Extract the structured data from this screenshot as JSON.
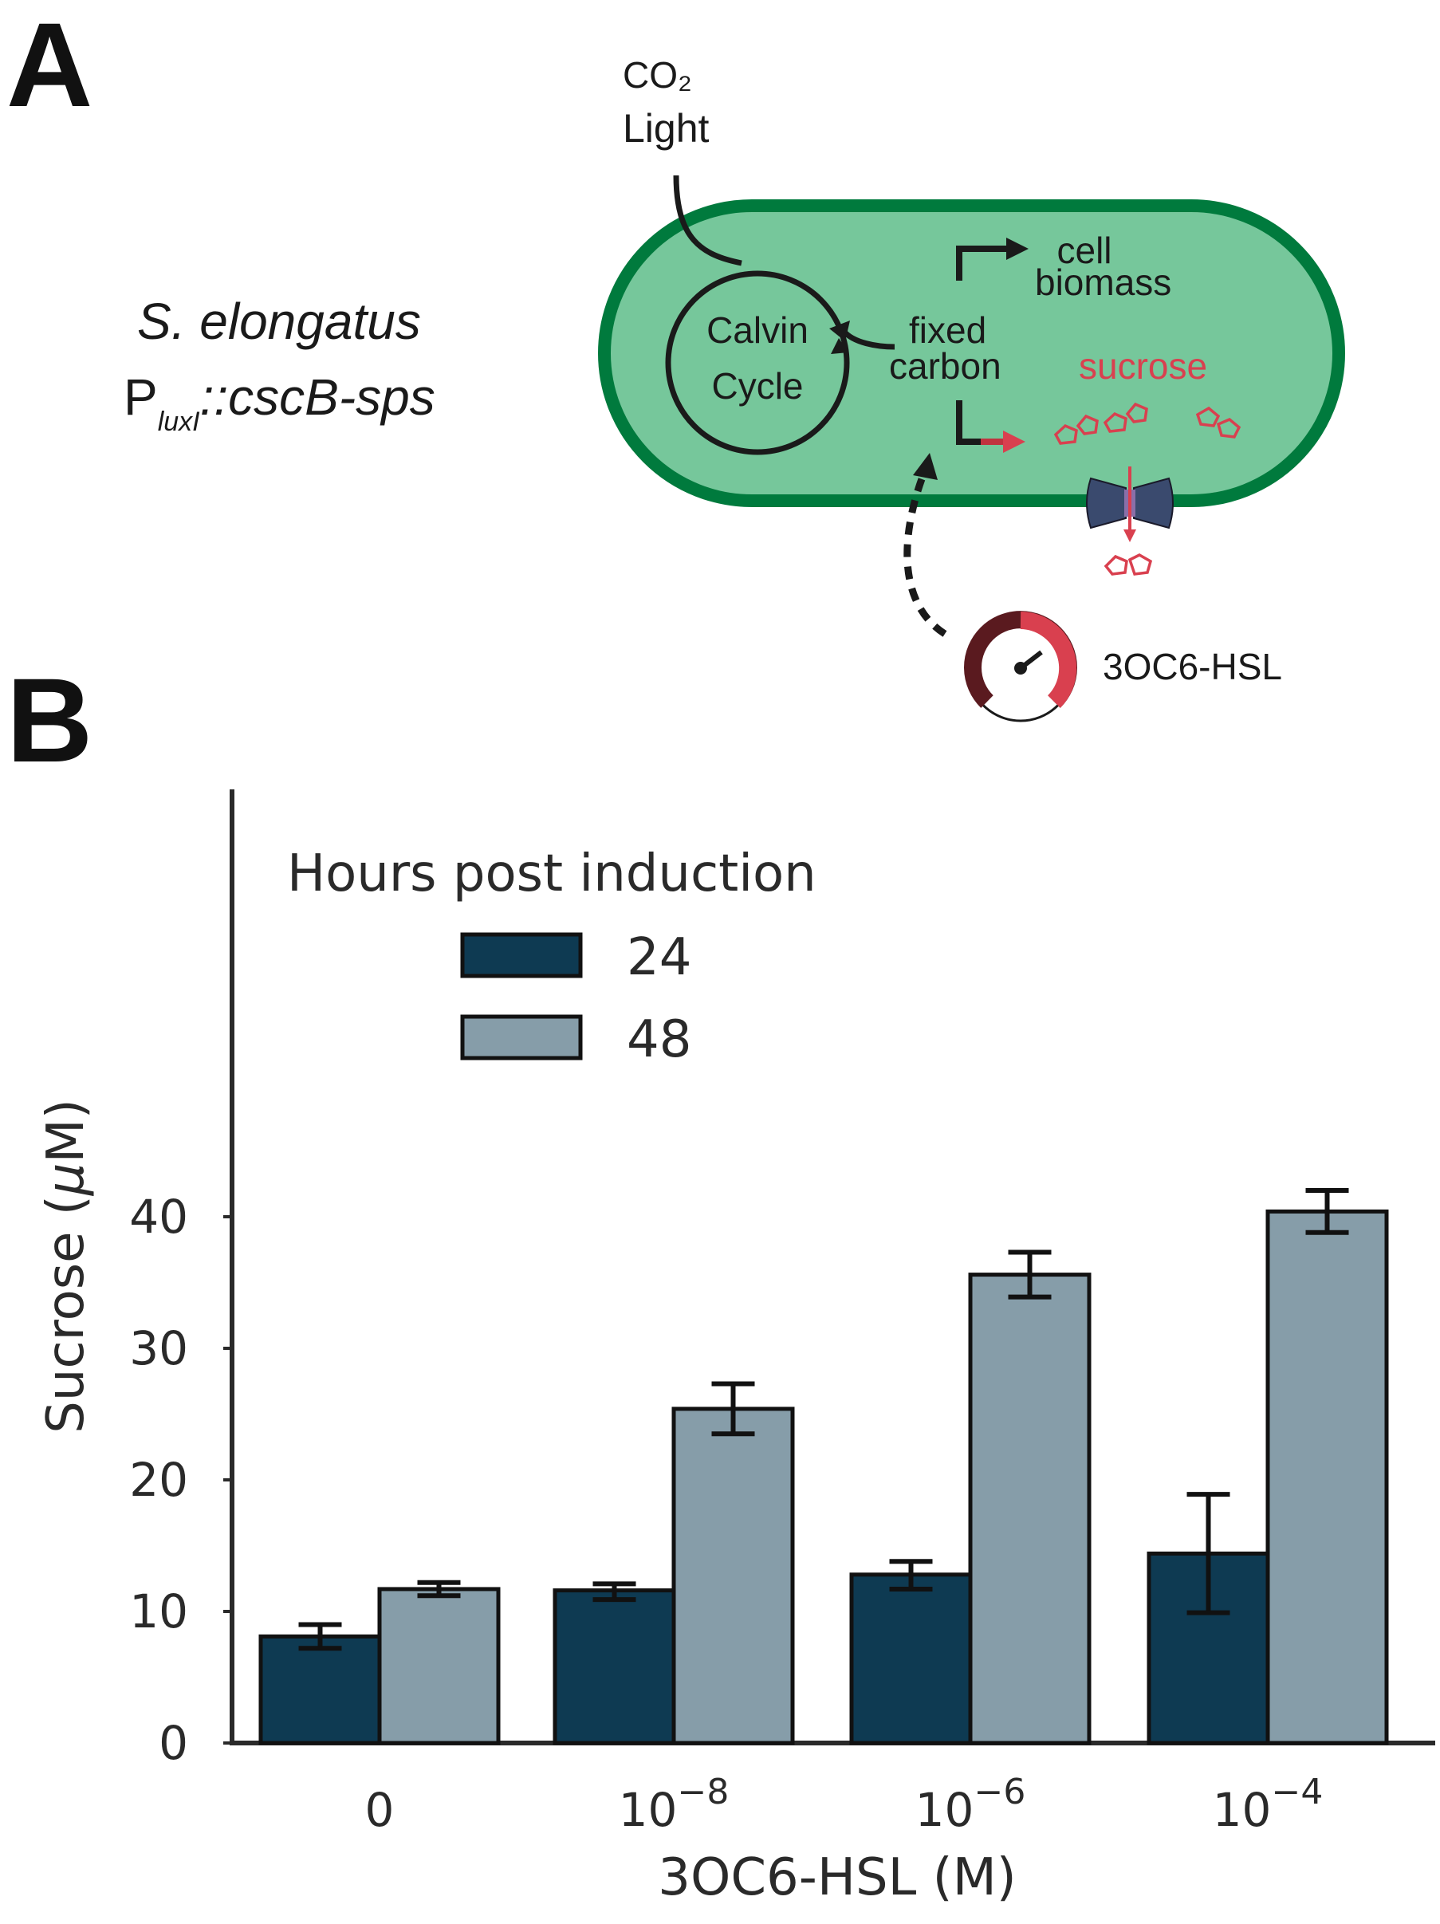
{
  "panel_a": {
    "letter": "A",
    "co2_label": "CO₂",
    "light_label": "Light",
    "organism_line1": "S. elongatus",
    "organism_line2_prefix": "P",
    "organism_line2_subscript": "luxI",
    "organism_line2_suffix": "::cscB-sps",
    "calvin_line1": "Calvin",
    "calvin_line2": "Cycle",
    "fixed_line1": "fixed",
    "fixed_line2": "carbon",
    "cell_line1": "cell",
    "cell_line2": "biomass",
    "sucrose_label": "sucrose",
    "inducer_label": "3OC6-HSL",
    "icons": [
      "calvin-cycle-arrow-icon",
      "sucrose-molecule-icon",
      "transporter-icon",
      "dial-gauge-icon"
    ],
    "colors": {
      "cell_fill": "#76c79b",
      "cell_border": "#007a3d",
      "sucrose": "#d9404f",
      "transporter": "#3a4a6e",
      "text": "#1a1a1a"
    }
  },
  "panel_b": {
    "letter": "B"
  },
  "chart_data": {
    "type": "bar",
    "categories": [
      "0",
      "10^-8",
      "10^-6",
      "10^-4"
    ],
    "category_labels": [
      {
        "base": "0",
        "exp": ""
      },
      {
        "base": "10",
        "exp": "−8"
      },
      {
        "base": "10",
        "exp": "−6"
      },
      {
        "base": "10",
        "exp": "−4"
      }
    ],
    "series": [
      {
        "name": "24",
        "color": "#0e3a52",
        "values": [
          8.1,
          11.6,
          12.8,
          14.4
        ],
        "err_low": [
          7.2,
          10.9,
          11.7,
          9.9
        ],
        "err_high": [
          9.0,
          12.1,
          13.8,
          18.9
        ]
      },
      {
        "name": "48",
        "color": "#869da9",
        "values": [
          11.7,
          25.4,
          35.6,
          40.4
        ],
        "err_low": [
          11.2,
          23.5,
          33.9,
          38.8
        ],
        "err_high": [
          12.2,
          27.3,
          37.3,
          42.0
        ]
      }
    ],
    "legend_title": "Hours post induction",
    "legend_position": "top-left",
    "xlabel": "3OC6-HSL (M)",
    "ylabel_prefix": "Sucrose (",
    "ylabel_mu": "μ",
    "ylabel_suffix": "M)",
    "ylim": [
      0,
      44
    ],
    "yticks": [
      0,
      10,
      20,
      30,
      40
    ],
    "grid": false
  }
}
